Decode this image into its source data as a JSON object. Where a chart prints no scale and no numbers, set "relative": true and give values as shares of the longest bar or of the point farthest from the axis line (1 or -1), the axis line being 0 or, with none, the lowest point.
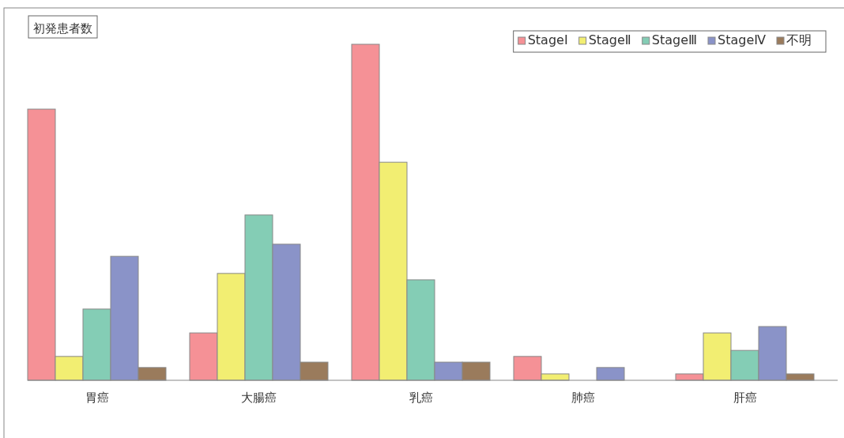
{
  "chart_data": {
    "type": "bar",
    "title": "初発患者数",
    "relative": true,
    "legend": "top right",
    "grid": false,
    "categories": [
      "胃癌",
      "大腸癌",
      "乳癌",
      "肺癌",
      "肝癌"
    ],
    "series": [
      {
        "name": "StageⅠ",
        "color": "#f59196",
        "values": [
          0.807,
          0.141,
          1,
          0.071,
          0.019
        ]
      },
      {
        "name": "StageⅡ",
        "color": "#f2ee72",
        "values": [
          0.071,
          0.318,
          0.649,
          0.019,
          0.141
        ]
      },
      {
        "name": "StageⅢ",
        "color": "#84cdb5",
        "values": [
          0.212,
          0.492,
          0.299,
          0,
          0.089
        ]
      },
      {
        "name": "StageⅣ",
        "color": "#8a93c8",
        "values": [
          0.369,
          0.405,
          0.054,
          0.038,
          0.16
        ]
      },
      {
        "name": "不明",
        "color": "#9a7b5c",
        "values": [
          0.038,
          0.054,
          0.054,
          0,
          0.019
        ]
      }
    ]
  }
}
